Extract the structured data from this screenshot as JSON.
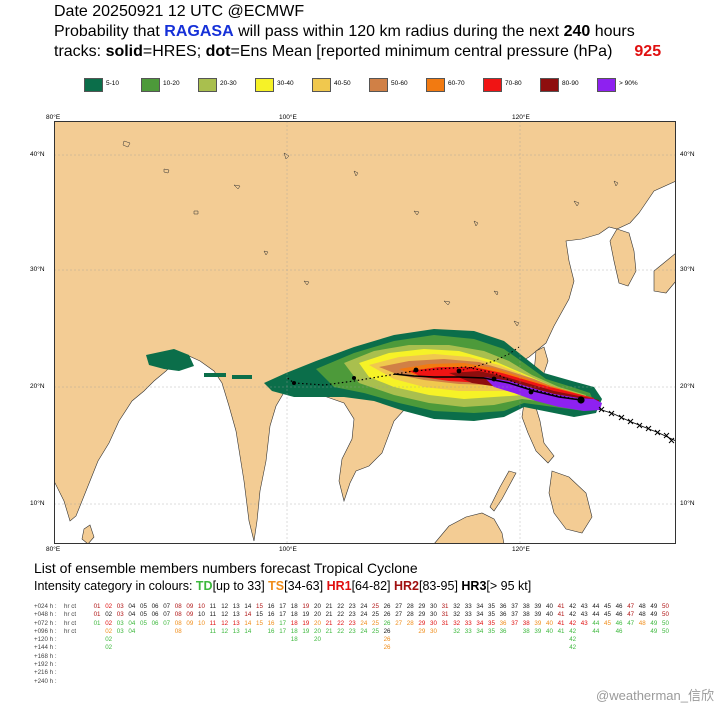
{
  "header": {
    "date_line": "Date 20250921  12 UTC    @ECMWF",
    "prob_prefix": "Probability that ",
    "storm_name": "RAGASA",
    "prob_mid": " will pass within 120 km radius during the next  ",
    "hours": "240",
    "prob_suffix": " hours",
    "tracks_prefix": "tracks: ",
    "solid_word": "solid",
    "tracks_mid1": "=HRES; ",
    "dot_word": "dot",
    "tracks_mid2": "=Ens Mean [reported minimum central pressure (hPa)",
    "pressure": "925"
  },
  "legend": [
    {
      "label": "5-10",
      "color": "#0b6e4a"
    },
    {
      "label": "10-20",
      "color": "#4d9a3a"
    },
    {
      "label": "20-30",
      "color": "#a9bf4e"
    },
    {
      "label": "30-40",
      "color": "#f6f227"
    },
    {
      "label": "40-50",
      "color": "#f0c84e"
    },
    {
      "label": "50-60",
      "color": "#d08046"
    },
    {
      "label": "60-70",
      "color": "#f27a11"
    },
    {
      "label": "70-80",
      "color": "#f01414"
    },
    {
      "label": "80-90",
      "color": "#8e0e0e"
    },
    {
      "label": "> 90%",
      "color": "#8e21f0"
    }
  ],
  "map": {
    "lon_labels": [
      "80°E",
      "100°E",
      "120°E"
    ],
    "lat_labels": [
      "40°N",
      "30°N",
      "20°N",
      "10°N"
    ],
    "land_color": "#f3cc94",
    "sea_color": "#ffffff"
  },
  "subtitle": {
    "line1": "List of ensemble members numbers forecast Tropical Cyclone",
    "line2_prefix": "Intensity category in colours: ",
    "td": "TD",
    "td_range": "[up to 33]",
    "ts": "TS",
    "ts_range": "[34-63]",
    "hr1": "HR1",
    "hr1_range": "[64-82]",
    "hr2": "HR2",
    "hr2_range": "[83-95]",
    "hr3": "HR3",
    "hr3_range": "[> 95 kt]"
  },
  "table": {
    "rows": [
      {
        "lead": "+024 h :",
        "hr": "hr",
        "ct": "ct",
        "members": [
          "01",
          "02",
          "03",
          "04",
          "05",
          "06",
          "07",
          "08",
          "09",
          "10",
          "11",
          "12",
          "13",
          "14",
          "15",
          "16",
          "17",
          "18",
          "19",
          "20",
          "21",
          "22",
          "23",
          "24",
          "25",
          "26",
          "27",
          "28",
          "29",
          "30",
          "31",
          "32",
          "33",
          "34",
          "35",
          "36",
          "37",
          "38",
          "39",
          "40",
          "41",
          "42",
          "43",
          "44",
          "45",
          "46",
          "47",
          "48",
          "49",
          "50"
        ],
        "cats": [
          "h2",
          "h1",
          "h2",
          "h3",
          "h3",
          "h3",
          "h3",
          "h2",
          "h2",
          "h2",
          "h3",
          "h3",
          "h3",
          "h3",
          "h2",
          "h3",
          "h3",
          "h3",
          "h2",
          "h3",
          "h3",
          "h3",
          "h3",
          "h3",
          "h2",
          "h3",
          "h3",
          "h3",
          "h3",
          "h3",
          "h2",
          "h3",
          "h3",
          "h3",
          "h3",
          "h3",
          "h3",
          "h3",
          "h3",
          "h3",
          "h2",
          "h3",
          "h3",
          "h3",
          "h3",
          "h3",
          "h2",
          "h3",
          "h3",
          "h2"
        ]
      },
      {
        "lead": "+048 h :",
        "hr": "hr",
        "ct": "ct",
        "members": [
          "01",
          "02",
          "03",
          "04",
          "05",
          "06",
          "07",
          "08",
          "09",
          "10",
          "11",
          "12",
          "13",
          "14",
          "15",
          "16",
          "17",
          "18",
          "19",
          "20",
          "21",
          "22",
          "23",
          "24",
          "25",
          "26",
          "27",
          "28",
          "29",
          "30",
          "31",
          "32",
          "33",
          "34",
          "35",
          "36",
          "37",
          "38",
          "39",
          "40",
          "41",
          "42",
          "43",
          "44",
          "45",
          "46",
          "47",
          "48",
          "49",
          "50"
        ],
        "cats": [
          "h2",
          "h3",
          "h2",
          "h3",
          "h3",
          "h3",
          "h3",
          "h2",
          "h2",
          "h3",
          "h3",
          "h3",
          "h3",
          "h2",
          "h3",
          "h3",
          "h3",
          "h3",
          "h3",
          "h3",
          "h3",
          "h3",
          "h3",
          "h3",
          "h3",
          "h3",
          "h3",
          "h3",
          "h3",
          "h3",
          "h2",
          "h3",
          "h3",
          "h3",
          "h3",
          "h3",
          "h3",
          "h3",
          "h3",
          "h3",
          "h2",
          "h3",
          "h3",
          "h3",
          "h3",
          "h3",
          "h2",
          "h3",
          "h3",
          "h2"
        ]
      },
      {
        "lead": "+072 h :",
        "hr": "hr",
        "ct": "ct",
        "members": [
          "01",
          "02",
          "03",
          "04",
          "05",
          "06",
          "07",
          "08",
          "09",
          "10",
          "11",
          "12",
          "13",
          "14",
          "15",
          "16",
          "17",
          "18",
          "19",
          "20",
          "21",
          "22",
          "23",
          "24",
          "25",
          "26",
          "27",
          "28",
          "29",
          "30",
          "31",
          "32",
          "33",
          "34",
          "35",
          "36",
          "37",
          "38",
          "39",
          "40",
          "41",
          "42",
          "43",
          "44",
          "45",
          "46",
          "47",
          "48",
          "49",
          "50"
        ],
        "cats": [
          "td",
          "h1",
          "td",
          "td",
          "td",
          "td",
          "td",
          "ts",
          "ts",
          "ts",
          "h1",
          "h1",
          "h1",
          "ts",
          "ts",
          "ts",
          "td",
          "h1",
          "h1",
          "ts",
          "h1",
          "h1",
          "h1",
          "ts",
          "ts",
          "td",
          "ts",
          "ts",
          "h1",
          "h1",
          "h1",
          "h1",
          "h1",
          "h1",
          "h1",
          "ts",
          "h1",
          "h1",
          "ts",
          "ts",
          "h1",
          "h1",
          "h1",
          "td",
          "ts",
          "td",
          "td",
          "ts",
          "td",
          "td"
        ]
      },
      {
        "lead": "+096 h :",
        "hr": "hr",
        "ct": "ct",
        "members": [
          "02",
          "03",
          "04",
          "08",
          "11",
          "12",
          "13",
          "14",
          "16",
          "17",
          "18",
          "19",
          "20",
          "21",
          "22",
          "23",
          "24",
          "25",
          "26",
          "29",
          "30",
          "32",
          "33",
          "34",
          "35",
          "36",
          "38",
          "39",
          "40",
          "41",
          "42",
          "44",
          "46",
          "49",
          "50"
        ],
        "cats": [
          "ts",
          "td",
          "td",
          "ts",
          "td",
          "td",
          "td",
          "td",
          "td",
          "td",
          "td",
          "td",
          "td",
          "td",
          "td",
          "td",
          "td",
          "td",
          "h3",
          "ts",
          "ts",
          "td",
          "td",
          "td",
          "td",
          "td",
          "td",
          "td",
          "td",
          "td",
          "td",
          "td",
          "td",
          "td",
          "td"
        ]
      },
      {
        "lead": "+120 h :",
        "hr": "",
        "ct": "",
        "members": [
          "02",
          "18",
          "20",
          "26",
          "42"
        ],
        "cats": [
          "td",
          "td",
          "td",
          "ts",
          "td"
        ]
      },
      {
        "lead": "+144 h :",
        "hr": "",
        "ct": "",
        "members": [
          "02",
          "26",
          "42"
        ],
        "cats": [
          "td",
          "ts",
          "td"
        ]
      },
      {
        "lead": "+168 h :",
        "hr": "",
        "ct": "",
        "members": [],
        "cats": []
      },
      {
        "lead": "+192 h :",
        "hr": "",
        "ct": "",
        "members": [],
        "cats": []
      },
      {
        "lead": "+216 h :",
        "hr": "",
        "ct": "",
        "members": [],
        "cats": []
      },
      {
        "lead": "+240 h :",
        "hr": "",
        "ct": "",
        "members": [],
        "cats": []
      }
    ],
    "cat_colors": {
      "td": "#3db83d",
      "ts": "#f08c18",
      "h1": "#e01010",
      "h2": "#b01515",
      "h3": "#1a1a1a"
    }
  },
  "watermark": "@weatherman_信欣"
}
